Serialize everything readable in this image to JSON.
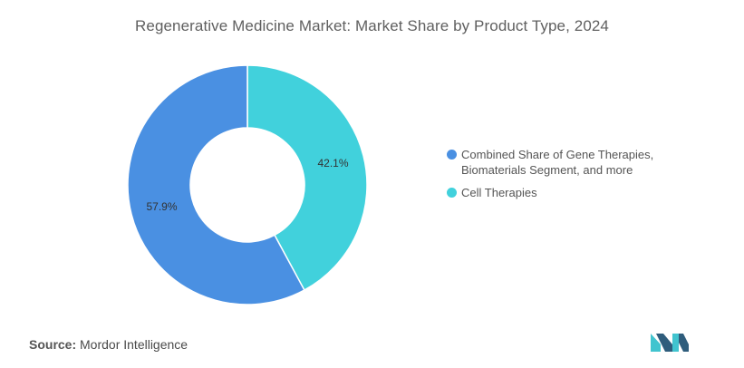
{
  "title": "Regenerative Medicine Market: Market Share by Product Type, 2024",
  "source": {
    "label": "Source:",
    "text": "Mordor Intelligence"
  },
  "colors": {
    "blue": "#4a90e2",
    "teal": "#41d1dc",
    "logo_dark": "#2f5d7c",
    "logo_teal": "#41c4cf"
  },
  "chart_data": {
    "type": "pie",
    "donut": true,
    "title": "Regenerative Medicine Market: Market Share by Product Type, 2024",
    "legend_position": "right",
    "slices": [
      {
        "label": "Cell Therapies",
        "value": 42.1,
        "value_label": "42.1%",
        "color": "#41d1dc"
      },
      {
        "label": "Combined Share of Gene Therapies, Biomaterials Segment, and more",
        "value": 57.9,
        "value_label": "57.9%",
        "color": "#4a90e2"
      }
    ]
  },
  "legend": [
    {
      "label": "Combined Share of Gene Therapies, Biomaterials Segment, and more",
      "color": "#4a90e2"
    },
    {
      "label": "Cell Therapies",
      "color": "#41d1dc"
    }
  ]
}
